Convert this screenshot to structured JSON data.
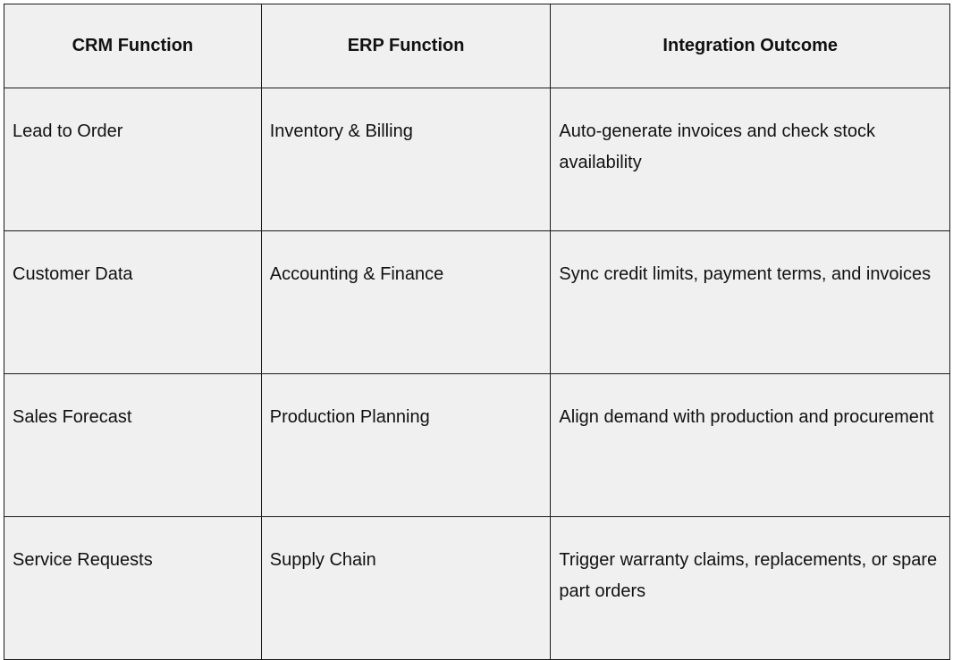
{
  "table": {
    "headers": [
      "CRM Function",
      "ERP Function",
      "Integration Outcome"
    ],
    "rows": [
      [
        "Lead to Order",
        "Inventory & Billing",
        "Auto-generate invoices and check stock availability"
      ],
      [
        "Customer Data",
        "Accounting & Finance",
        "Sync credit limits, payment terms, and invoices"
      ],
      [
        "Sales Forecast",
        "Production Planning",
        "Align demand with production and procurement"
      ],
      [
        "Service Requests",
        "Supply Chain",
        "Trigger warranty claims, replacements, or spare part orders"
      ]
    ]
  },
  "colors": {
    "background": "#f0f0f0",
    "border": "#1a1a1a",
    "text": "#111111"
  }
}
